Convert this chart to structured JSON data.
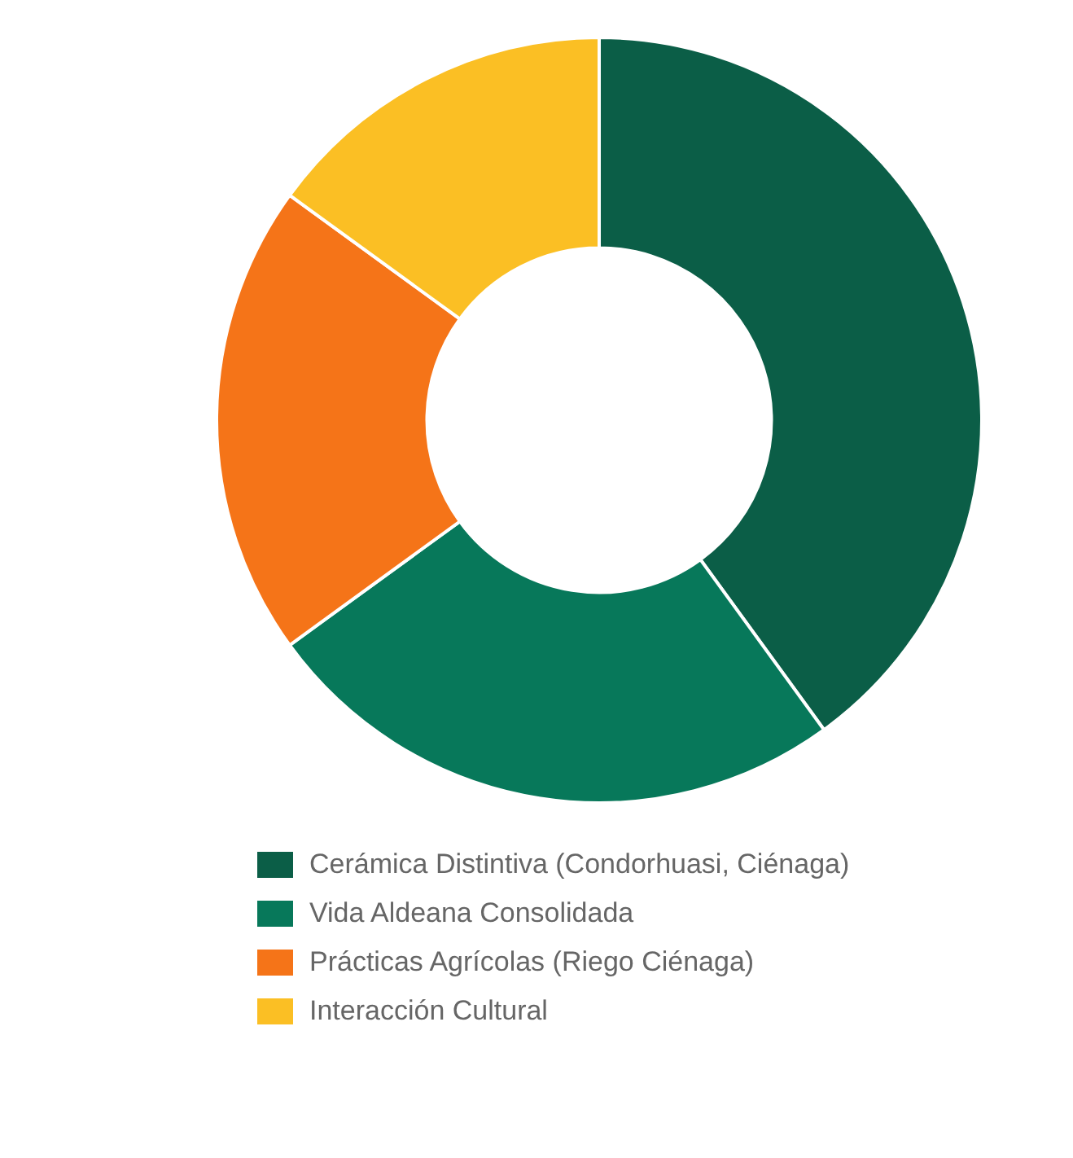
{
  "chart_data": {
    "type": "donut",
    "categories": [
      "Cerámica Distintiva (Condorhuasi, Ciénaga)",
      "Vida Aldeana Consolidada",
      "Prácticas Agrícolas (Riego Ciénaga)",
      "Interacción Cultural"
    ],
    "values": [
      40,
      25,
      20,
      15
    ],
    "colors": [
      "#0b5e47",
      "#07785a",
      "#f57418",
      "#fbbf24"
    ],
    "legend": "bottom"
  }
}
